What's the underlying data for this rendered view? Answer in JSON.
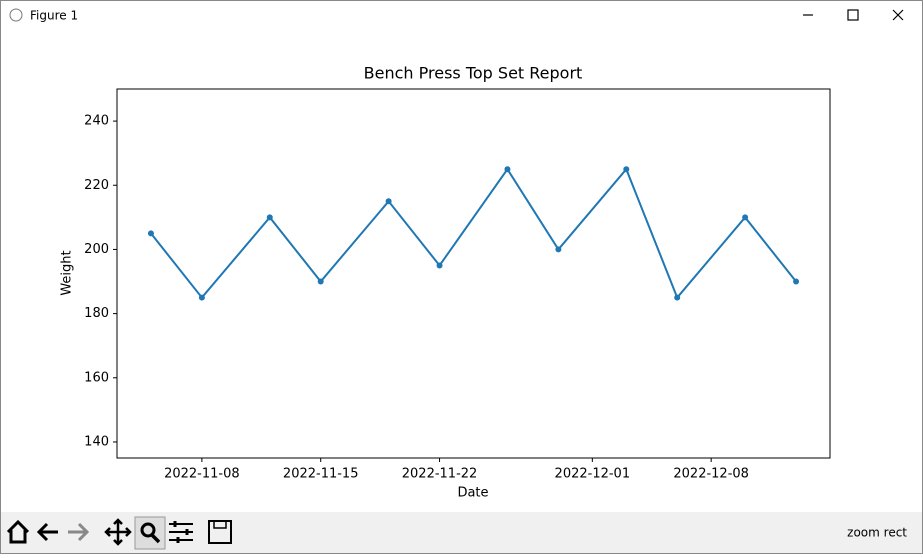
{
  "window": {
    "title": "Figure 1"
  },
  "chart_data": {
    "type": "line",
    "title": "Bench Press Top Set Report",
    "x_label": "Date",
    "y_label": "Weight",
    "x": [
      "2022-11-05",
      "2022-11-08",
      "2022-11-12",
      "2022-11-15",
      "2022-11-19",
      "2022-11-22",
      "2022-11-26",
      "2022-11-29",
      "2022-12-03",
      "2022-12-06",
      "2022-12-10",
      "2022-12-13"
    ],
    "series": [
      {
        "name": "Weight",
        "color": "#1f77b4",
        "values": [
          205,
          185,
          210,
          190,
          215,
          195,
          225,
          200,
          225,
          185,
          210,
          190
        ]
      }
    ],
    "xlim": [
      "2022-11-03",
      "2022-12-15"
    ],
    "xticks": [
      "2022-11-08",
      "2022-11-15",
      "2022-11-22",
      "2022-12-01",
      "2022-12-08"
    ],
    "ylim": [
      135,
      250
    ],
    "yticks": [
      140,
      160,
      180,
      200,
      220,
      240
    ],
    "grid": false
  },
  "toolbar": {
    "status": "zoom rect"
  }
}
